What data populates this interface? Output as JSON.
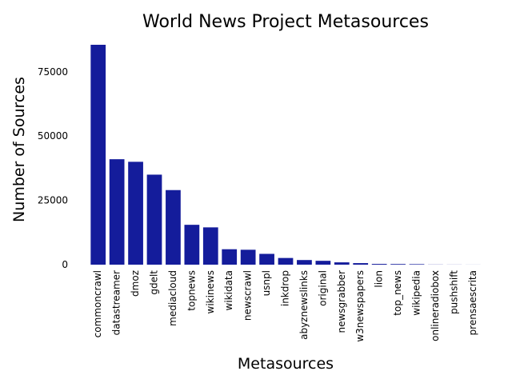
{
  "chart_data": {
    "type": "bar",
    "title": "World News Project Metasources",
    "xlabel": "Metasources",
    "ylabel": "Number of Sources",
    "ylim": [
      0,
      85500
    ],
    "yticks": [
      0,
      25000,
      50000,
      75000
    ],
    "grid": false,
    "bar_color": "#141c9b",
    "categories": [
      "commoncrawl",
      "datastreamer",
      "dmoz",
      "gdelt",
      "mediacloud",
      "topnews",
      "wikinews",
      "wikidata",
      "newscrawl",
      "usnpl",
      "inkdrop",
      "abyznewslinks",
      "original",
      "newsgrabber",
      "w3newspapers",
      "lion",
      "top_news",
      "wikipedia",
      "onlineradiobox",
      "pushshift",
      "prensaescrita"
    ],
    "values": [
      85500,
      41000,
      40000,
      35000,
      29000,
      15500,
      14500,
      6000,
      5800,
      4200,
      2600,
      1800,
      1500,
      900,
      600,
      300,
      250,
      200,
      50,
      30,
      20
    ]
  }
}
